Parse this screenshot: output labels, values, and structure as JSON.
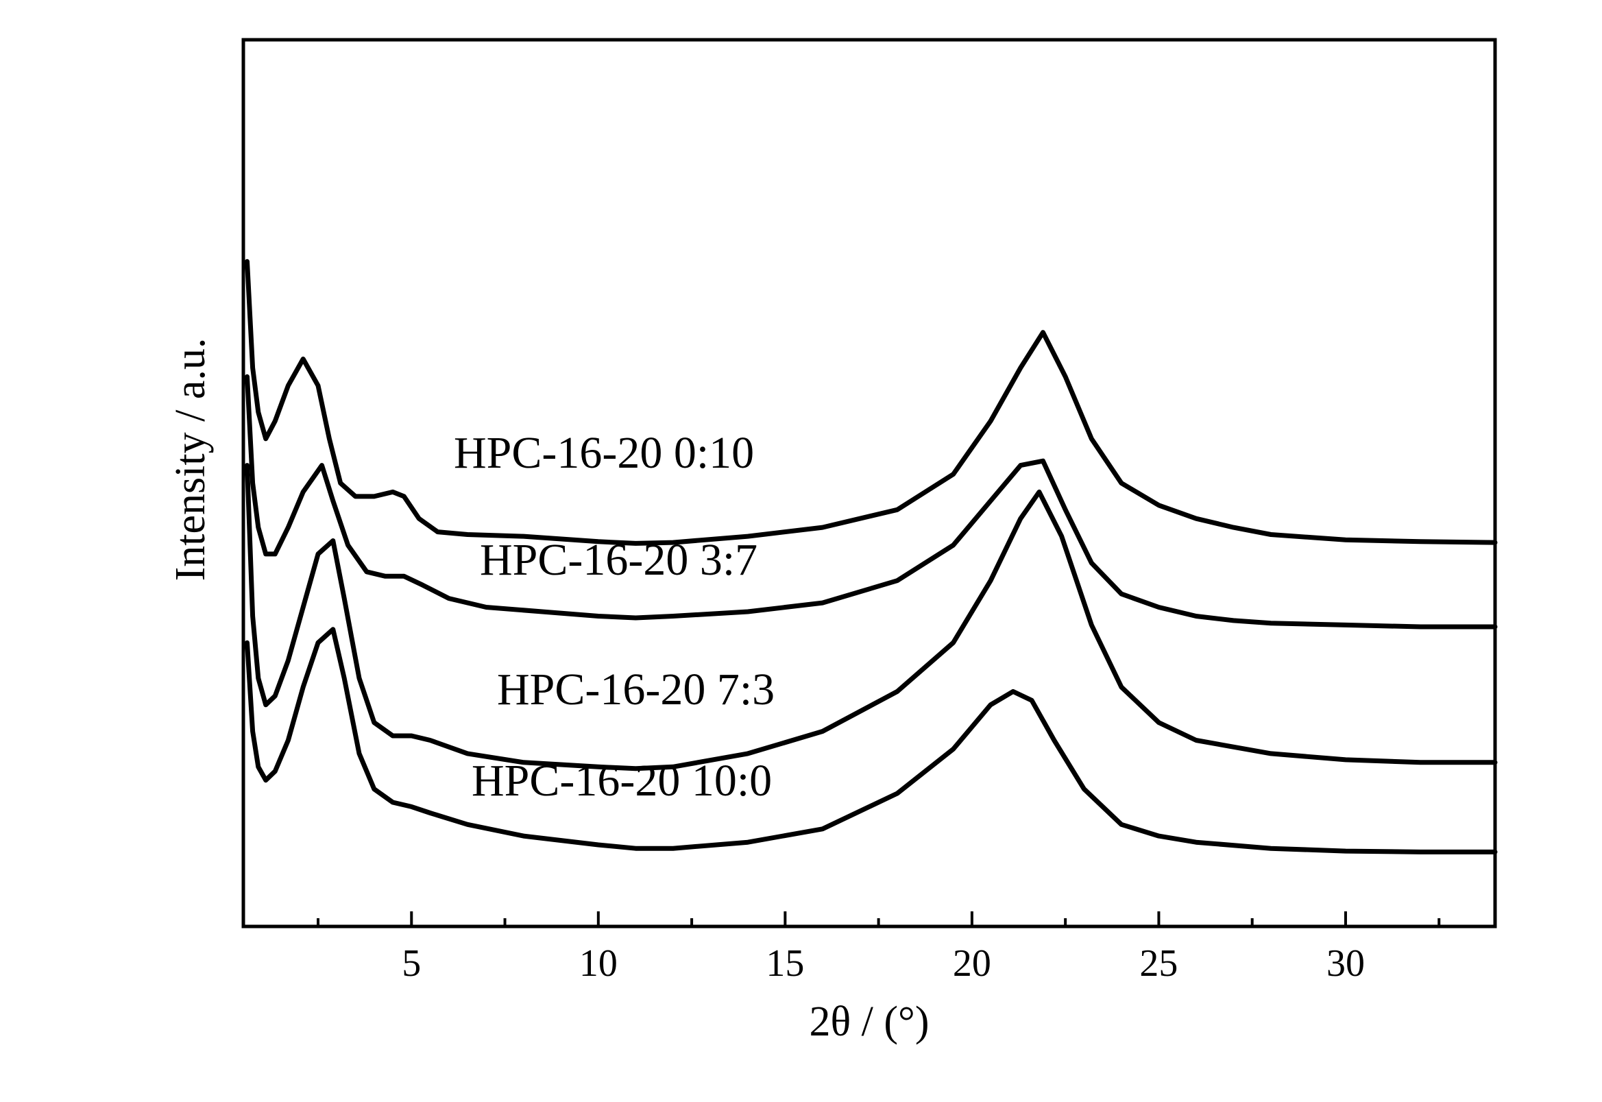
{
  "chart_data": {
    "type": "line",
    "title": "",
    "xlabel": "2θ / (°)",
    "ylabel": "Intensity / a.u.",
    "xlim": [
      0.5,
      34
    ],
    "ylim": [
      0,
      100
    ],
    "x_ticks": [
      5,
      10,
      15,
      20,
      25,
      30
    ],
    "x_minor_ticks": [
      2.5,
      7.5,
      12.5,
      17.5,
      22.5,
      27.5,
      32.5
    ],
    "y_ticks_shown": false,
    "grid": false,
    "legend": "none",
    "line_color": "#000000",
    "series": [
      {
        "name": "HPC-16-20 0:10",
        "x": [
          0.6,
          0.75,
          0.9,
          1.1,
          1.35,
          1.7,
          2.1,
          2.5,
          2.8,
          3.1,
          3.5,
          4.0,
          4.5,
          4.8,
          5.2,
          5.7,
          6.5,
          8,
          10,
          11,
          12,
          14,
          16,
          18,
          19.5,
          20.5,
          21.3,
          21.9,
          22.5,
          23.2,
          24,
          25,
          26,
          27,
          28,
          30,
          32,
          34
        ],
        "y": [
          75,
          63,
          58,
          55,
          57,
          61,
          64,
          61,
          55,
          50,
          48.5,
          48.5,
          49,
          48.5,
          46,
          44.5,
          44.2,
          44,
          43.4,
          43.2,
          43.3,
          44,
          45,
          47,
          51,
          57,
          63,
          67,
          62,
          55,
          50,
          47.5,
          46,
          45,
          44.2,
          43.6,
          43.4,
          43.3
        ]
      },
      {
        "name": "HPC-16-20 3:7",
        "x": [
          0.6,
          0.75,
          0.9,
          1.1,
          1.35,
          1.7,
          2.1,
          2.6,
          2.9,
          3.3,
          3.8,
          4.3,
          4.8,
          5.3,
          6,
          7,
          8.5,
          10,
          11,
          12,
          14,
          16,
          18,
          19.5,
          20.5,
          21.3,
          21.9,
          22.5,
          23.2,
          24,
          25,
          26,
          27,
          28,
          30,
          32,
          34
        ],
        "y": [
          62,
          50,
          45,
          42,
          42,
          45,
          49,
          52,
          48,
          43,
          40,
          39.5,
          39.5,
          38.5,
          37,
          36,
          35.5,
          35,
          34.8,
          35,
          35.5,
          36.5,
          39,
          43,
          48,
          52,
          52.5,
          47,
          41,
          37.5,
          36,
          35,
          34.5,
          34.2,
          34,
          33.8,
          33.8
        ]
      },
      {
        "name": "HPC-16-20 7:3",
        "x": [
          0.6,
          0.75,
          0.9,
          1.1,
          1.35,
          1.7,
          2.1,
          2.5,
          2.9,
          3.2,
          3.6,
          4.0,
          4.5,
          5.0,
          5.5,
          6.5,
          8,
          10,
          11,
          12,
          14,
          16,
          18,
          19.5,
          20.5,
          21.3,
          21.8,
          22.4,
          23.2,
          24,
          25,
          26,
          28,
          30,
          32,
          34
        ],
        "y": [
          52,
          35,
          28,
          25,
          26,
          30,
          36,
          42,
          43.5,
          37,
          28,
          23,
          21.5,
          21.5,
          21,
          19.5,
          18.5,
          18,
          17.8,
          18,
          19.5,
          22,
          26.5,
          32,
          39,
          46,
          49,
          44,
          34,
          27,
          23,
          21,
          19.5,
          18.8,
          18.5,
          18.5
        ]
      },
      {
        "name": "HPC-16-20 10:0",
        "x": [
          0.6,
          0.75,
          0.9,
          1.1,
          1.35,
          1.7,
          2.1,
          2.5,
          2.9,
          3.2,
          3.6,
          4.0,
          4.5,
          5.0,
          5.5,
          6.5,
          8,
          10,
          11,
          12,
          14,
          16,
          18,
          19.5,
          20.5,
          21.1,
          21.6,
          22.2,
          23,
          24,
          25,
          26,
          28,
          30,
          32,
          34
        ],
        "y": [
          32,
          22,
          18,
          16.5,
          17.5,
          21,
          27,
          32,
          33.5,
          28,
          19.5,
          15.5,
          14,
          13.5,
          12.8,
          11.5,
          10.2,
          9.2,
          8.8,
          8.8,
          9.5,
          11,
          15,
          20,
          25,
          26.5,
          25.5,
          21,
          15.5,
          11.5,
          10.2,
          9.5,
          8.8,
          8.5,
          8.4,
          8.4
        ]
      }
    ],
    "series_label_text": [
      "HPC-16-20 0:10",
      "HPC-16-20 3:7",
      "HPC-16-20 7:3",
      "HPC-16-20 10:0"
    ]
  }
}
